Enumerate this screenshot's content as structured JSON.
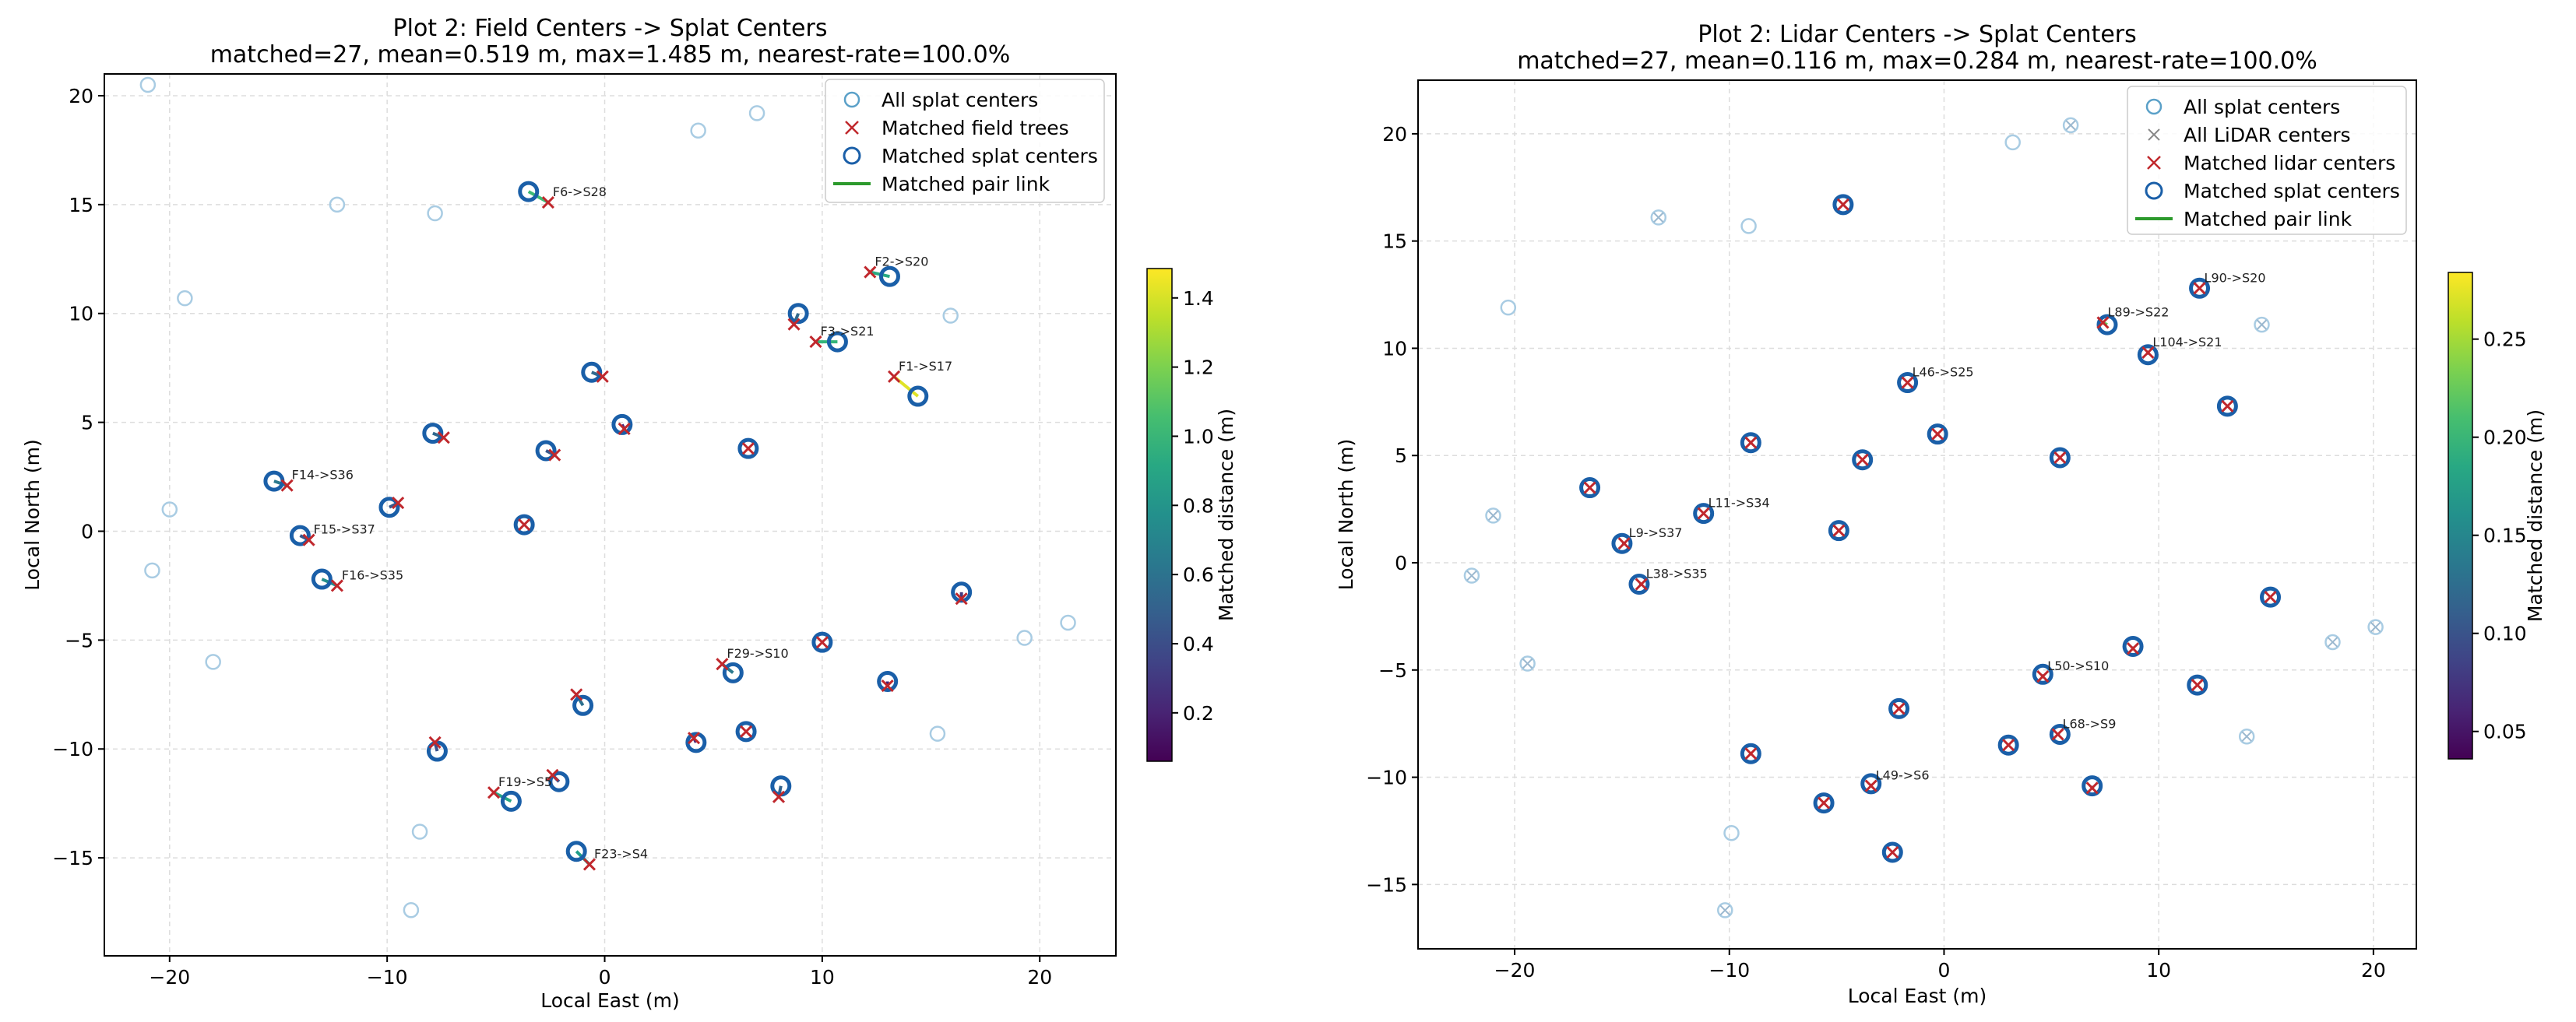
{
  "chart_data": [
    {
      "type": "scatter",
      "title": "Plot 2: Field Centers -> Splat Centers",
      "subtitle": "matched=27, mean=0.519 m, max=1.485 m, nearest-rate=100.0%",
      "xlabel": "Local East (m)",
      "ylabel": "Local North (m)",
      "xlim": [
        -23,
        23.5
      ],
      "ylim": [
        -19.5,
        21
      ],
      "xticks": [
        -20,
        -10,
        0,
        10,
        20
      ],
      "yticks": [
        -15,
        -10,
        -5,
        0,
        5,
        10,
        15,
        20
      ],
      "grid": true,
      "legend_position": "top-right",
      "legend": [
        "All splat centers",
        "Matched field trees",
        "Matched splat centers",
        "Matched pair link"
      ],
      "colorbar": {
        "label": "Matched distance (m)",
        "range": [
          0.06,
          1.485
        ],
        "ticks": [
          0.2,
          0.4,
          0.6,
          0.8,
          1.0,
          1.2,
          1.4
        ]
      },
      "splat_centers": [
        [
          -21,
          20.5
        ],
        [
          7,
          19.2
        ],
        [
          4.3,
          18.4
        ],
        [
          -12.3,
          15
        ],
        [
          -7.8,
          14.6
        ],
        [
          -19.3,
          10.7
        ],
        [
          15.9,
          9.9
        ],
        [
          -20,
          1
        ],
        [
          -20.8,
          -1.8
        ],
        [
          -18,
          -6
        ],
        [
          19.3,
          -4.9
        ],
        [
          21.3,
          -4.2
        ],
        [
          15.3,
          -9.3
        ],
        [
          -8.5,
          -13.8
        ],
        [
          -8.9,
          -17.4
        ]
      ],
      "matched_pairs": [
        {
          "field": [
            -2.6,
            15.1
          ],
          "splat": [
            -3.5,
            15.6
          ],
          "label": "F6->S28"
        },
        {
          "field": [
            12.2,
            11.9
          ],
          "splat": [
            13.1,
            11.7
          ],
          "label": "F2->S20"
        },
        {
          "field": [
            8.7,
            9.5
          ],
          "splat": [
            8.9,
            10
          ]
        },
        {
          "field": [
            9.7,
            8.7
          ],
          "splat": [
            10.7,
            8.7
          ],
          "label": "F3->S21"
        },
        {
          "field": [
            13.3,
            7.1
          ],
          "splat": [
            14.4,
            6.2
          ],
          "label": "F1->S17"
        },
        {
          "field": [
            -0.1,
            7.1
          ],
          "splat": [
            -0.6,
            7.3
          ]
        },
        {
          "field": [
            0.9,
            4.7
          ],
          "splat": [
            0.8,
            4.9
          ]
        },
        {
          "field": [
            -7.4,
            4.3
          ],
          "splat": [
            -7.9,
            4.5
          ]
        },
        {
          "field": [
            -2.3,
            3.5
          ],
          "splat": [
            -2.7,
            3.7
          ]
        },
        {
          "field": [
            6.6,
            3.8
          ],
          "splat": [
            6.6,
            3.8
          ]
        },
        {
          "field": [
            -14.6,
            2.1
          ],
          "splat": [
            -15.2,
            2.3
          ],
          "label": "F14->S36"
        },
        {
          "field": [
            -9.5,
            1.3
          ],
          "splat": [
            -9.9,
            1.1
          ]
        },
        {
          "field": [
            -3.7,
            0.3
          ],
          "splat": [
            -3.7,
            0.3
          ]
        },
        {
          "field": [
            -13.6,
            -0.4
          ],
          "splat": [
            -14,
            -0.2
          ],
          "label": "F15->S37"
        },
        {
          "field": [
            -12.3,
            -2.5
          ],
          "splat": [
            -13,
            -2.2
          ],
          "label": "F16->S35"
        },
        {
          "field": [
            16.4,
            -3.1
          ],
          "splat": [
            16.4,
            -2.8
          ]
        },
        {
          "field": [
            5.4,
            -6.1
          ],
          "splat": [
            5.9,
            -6.5
          ],
          "label": "F29->S10"
        },
        {
          "field": [
            10,
            -5.1
          ],
          "splat": [
            10,
            -5.1
          ]
        },
        {
          "field": [
            13,
            -7.1
          ],
          "splat": [
            13,
            -6.9
          ]
        },
        {
          "field": [
            -1.3,
            -7.5
          ],
          "splat": [
            -1,
            -8
          ]
        },
        {
          "field": [
            4.1,
            -9.5
          ],
          "splat": [
            4.2,
            -9.7
          ]
        },
        {
          "field": [
            6.5,
            -9.2
          ],
          "splat": [
            6.5,
            -9.2
          ]
        },
        {
          "field": [
            -7.8,
            -9.7
          ],
          "splat": [
            -7.7,
            -10.1
          ]
        },
        {
          "field": [
            -2.4,
            -11.2
          ],
          "splat": [
            -2.1,
            -11.5
          ]
        },
        {
          "field": [
            8,
            -12.2
          ],
          "splat": [
            8.1,
            -11.7
          ]
        },
        {
          "field": [
            -5.1,
            -12
          ],
          "splat": [
            -4.3,
            -12.4
          ],
          "label": "F19->S5"
        },
        {
          "field": [
            -0.7,
            -15.3
          ],
          "splat": [
            -1.3,
            -14.7
          ],
          "label": "F23->S4"
        }
      ]
    },
    {
      "type": "scatter",
      "title": "Plot 2: Lidar Centers -> Splat Centers",
      "subtitle": "matched=27, mean=0.116 m, max=0.284 m, nearest-rate=100.0%",
      "xlabel": "Local East (m)",
      "ylabel": "Local North (m)",
      "xlim": [
        -24.5,
        22
      ],
      "ylim": [
        -18,
        22.5
      ],
      "xticks": [
        -20,
        -10,
        0,
        10,
        20
      ],
      "yticks": [
        -15,
        -10,
        -5,
        0,
        5,
        10,
        15,
        20
      ],
      "grid": true,
      "legend_position": "top-right",
      "legend": [
        "All splat centers",
        "All LiDAR centers",
        "Matched lidar centers",
        "Matched splat centers",
        "Matched pair link"
      ],
      "colorbar": {
        "label": "Matched distance (m)",
        "range": [
          0.036,
          0.284
        ],
        "ticks": [
          0.05,
          0.1,
          0.15,
          0.2,
          0.25
        ]
      },
      "splat_centers": [
        [
          5.9,
          20.4
        ],
        [
          3.2,
          19.6
        ],
        [
          -13.3,
          16.1
        ],
        [
          -9.1,
          15.7
        ],
        [
          -20.3,
          11.9
        ],
        [
          14.8,
          11.1
        ],
        [
          -21,
          2.2
        ],
        [
          -22,
          -0.6
        ],
        [
          -19.4,
          -4.7
        ],
        [
          20.1,
          -3
        ],
        [
          18.1,
          -3.7
        ],
        [
          14.1,
          -8.1
        ],
        [
          -9.9,
          -12.6
        ],
        [
          -10.2,
          -16.2
        ]
      ],
      "lidar_centers": [
        [
          5.9,
          20.4
        ],
        [
          -13.3,
          16.1
        ],
        [
          14.8,
          11.1
        ],
        [
          -21,
          2.2
        ],
        [
          -22,
          -0.6
        ],
        [
          -19.4,
          -4.7
        ],
        [
          20.1,
          -3
        ],
        [
          18.1,
          -3.7
        ],
        [
          14.1,
          -8.1
        ],
        [
          -10.2,
          -16.2
        ]
      ],
      "matched_pairs": [
        {
          "lidar": [
            -4.7,
            16.7
          ],
          "splat": [
            -4.7,
            16.7
          ]
        },
        {
          "lidar": [
            11.9,
            12.8
          ],
          "splat": [
            11.9,
            12.8
          ],
          "label": "L90->S20"
        },
        {
          "lidar": [
            7.4,
            11.2
          ],
          "splat": [
            7.6,
            11.1
          ],
          "label": "L89->S22"
        },
        {
          "lidar": [
            9.5,
            9.8
          ],
          "splat": [
            9.5,
            9.7
          ],
          "label": "L104->S21"
        },
        {
          "lidar": [
            -1.7,
            8.4
          ],
          "splat": [
            -1.7,
            8.4
          ],
          "label": "L46->S25"
        },
        {
          "lidar": [
            13.2,
            7.3
          ],
          "splat": [
            13.2,
            7.3
          ]
        },
        {
          "lidar": [
            -0.3,
            6
          ],
          "splat": [
            -0.3,
            6
          ]
        },
        {
          "lidar": [
            -9,
            5.6
          ],
          "splat": [
            -9,
            5.6
          ]
        },
        {
          "lidar": [
            -3.8,
            4.8
          ],
          "splat": [
            -3.8,
            4.8
          ]
        },
        {
          "lidar": [
            5.4,
            4.9
          ],
          "splat": [
            5.4,
            4.9
          ]
        },
        {
          "lidar": [
            -16.5,
            3.5
          ],
          "splat": [
            -16.5,
            3.5
          ]
        },
        {
          "lidar": [
            -11.2,
            2.3
          ],
          "splat": [
            -11.2,
            2.3
          ],
          "label": "L11->S34"
        },
        {
          "lidar": [
            -4.9,
            1.5
          ],
          "splat": [
            -4.9,
            1.5
          ]
        },
        {
          "lidar": [
            -14.9,
            0.9
          ],
          "splat": [
            -15,
            0.9
          ],
          "label": "L9->S37"
        },
        {
          "lidar": [
            -14.1,
            -1
          ],
          "splat": [
            -14.2,
            -1
          ],
          "label": "L38->S35"
        },
        {
          "lidar": [
            15.2,
            -1.6
          ],
          "splat": [
            15.2,
            -1.6
          ]
        },
        {
          "lidar": [
            8.8,
            -4
          ],
          "splat": [
            8.8,
            -3.9
          ]
        },
        {
          "lidar": [
            4.6,
            -5.3
          ],
          "splat": [
            4.6,
            -5.2
          ],
          "label": "L50->S10"
        },
        {
          "lidar": [
            11.8,
            -5.7
          ],
          "splat": [
            11.8,
            -5.7
          ]
        },
        {
          "lidar": [
            -2.1,
            -6.8
          ],
          "splat": [
            -2.1,
            -6.8
          ]
        },
        {
          "lidar": [
            5.3,
            -8
          ],
          "splat": [
            5.4,
            -8
          ],
          "label": "L68->S9"
        },
        {
          "lidar": [
            3,
            -8.5
          ],
          "splat": [
            3,
            -8.5
          ]
        },
        {
          "lidar": [
            -9,
            -8.9
          ],
          "splat": [
            -9,
            -8.9
          ]
        },
        {
          "lidar": [
            6.9,
            -10.5
          ],
          "splat": [
            6.9,
            -10.4
          ]
        },
        {
          "lidar": [
            -3.4,
            -10.4
          ],
          "splat": [
            -3.4,
            -10.3
          ],
          "label": "L49->S6"
        },
        {
          "lidar": [
            -5.6,
            -11.2
          ],
          "splat": [
            -5.6,
            -11.2
          ]
        },
        {
          "lidar": [
            -2.4,
            -13.5
          ],
          "splat": [
            -2.4,
            -13.5
          ]
        }
      ]
    }
  ]
}
